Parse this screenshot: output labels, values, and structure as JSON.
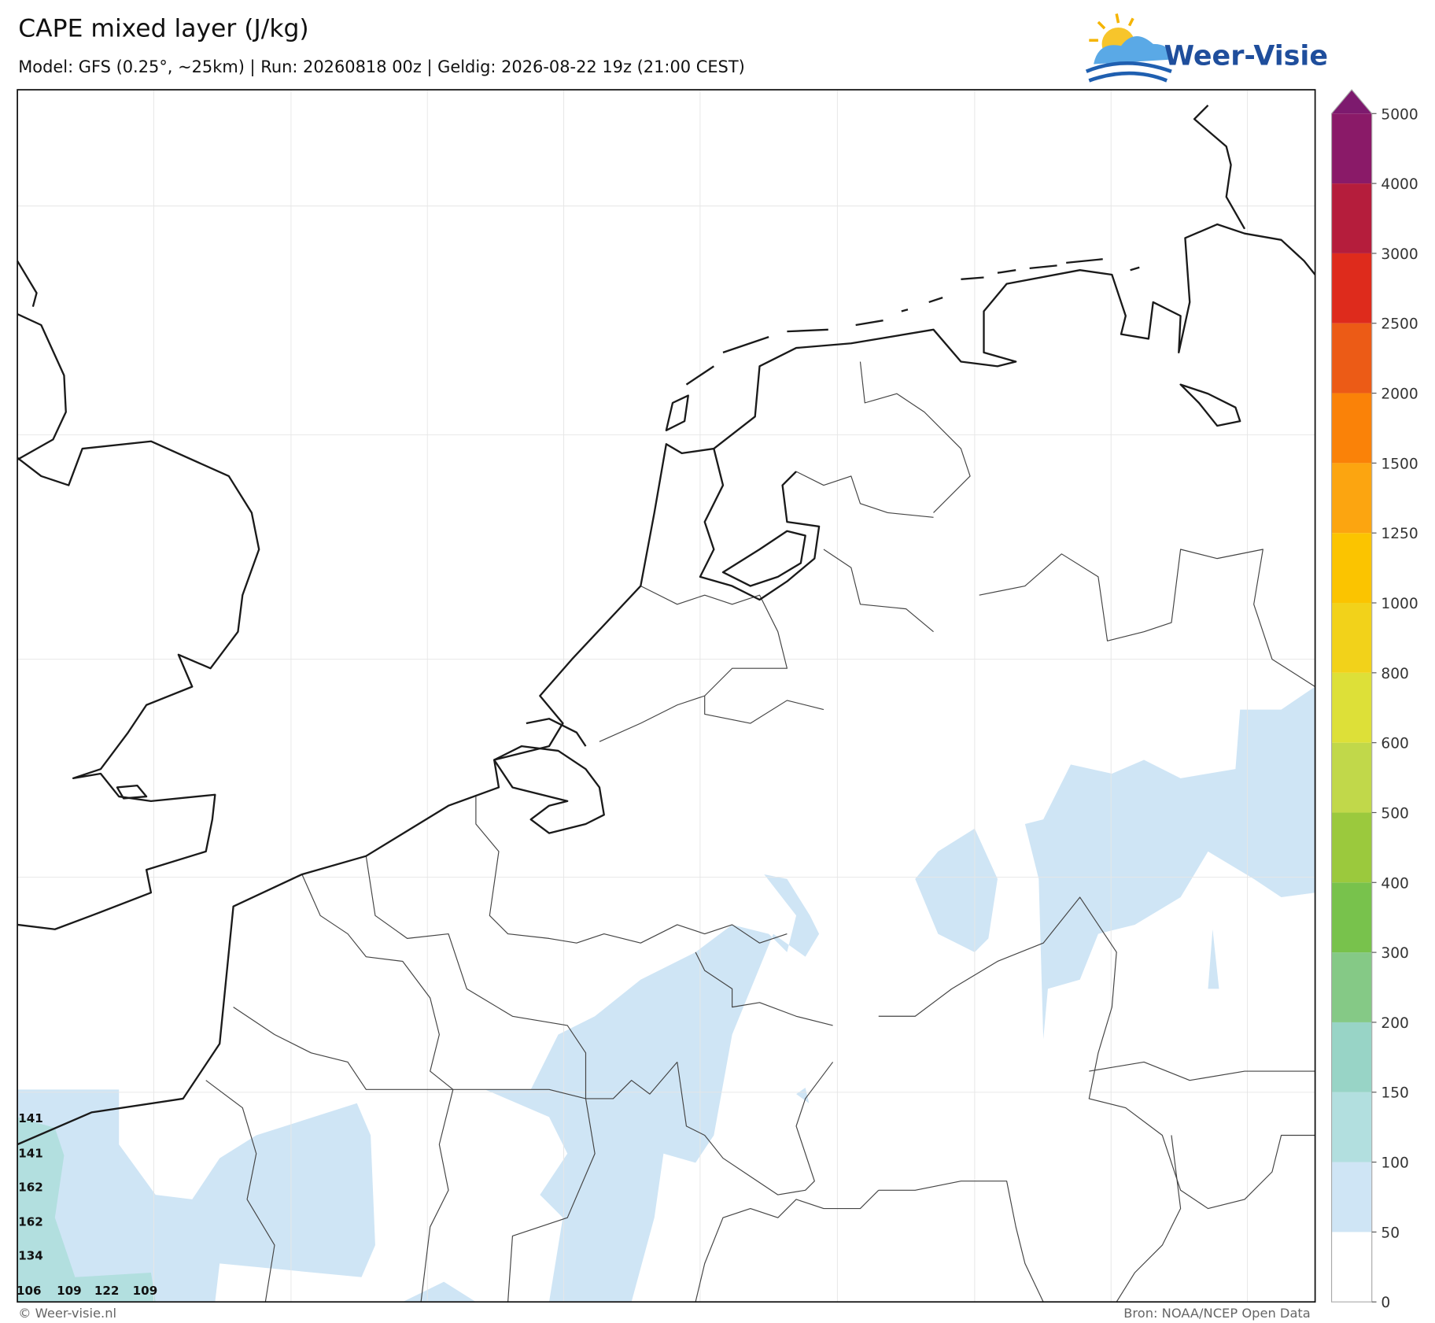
{
  "header": {
    "title": "CAPE mixed layer (J/kg)",
    "subtitle": "Model: GFS (0.25°, ~25km)  |  Run: 20260818 00z  |  Geldig: 2026-08-22 19z (21:00 CEST)",
    "logo": "Weer-Visie"
  },
  "colorbar": {
    "ticks": [
      0,
      50,
      100,
      150,
      200,
      300,
      400,
      500,
      600,
      800,
      1000,
      1250,
      1500,
      2000,
      2500,
      3000,
      4000,
      5000
    ],
    "colors": [
      "#ffffff",
      "#cfe5f5",
      "#b2dfdf",
      "#98d4c6",
      "#85c986",
      "#78c24c",
      "#9bc93d",
      "#c1d84a",
      "#dde038",
      "#f2d21a",
      "#fbc400",
      "#fca510",
      "#fa8208",
      "#ec5b16",
      "#de2b1c",
      "#b51d3c",
      "#8a1a68"
    ],
    "extend_color": "#7d1a6e"
  },
  "point_values": [
    141,
    141,
    162,
    162,
    134,
    106,
    109,
    122,
    109
  ],
  "footer": {
    "left": "© Weer-visie.nl",
    "right": "Bron: NOAA/NCEP Open Data"
  }
}
